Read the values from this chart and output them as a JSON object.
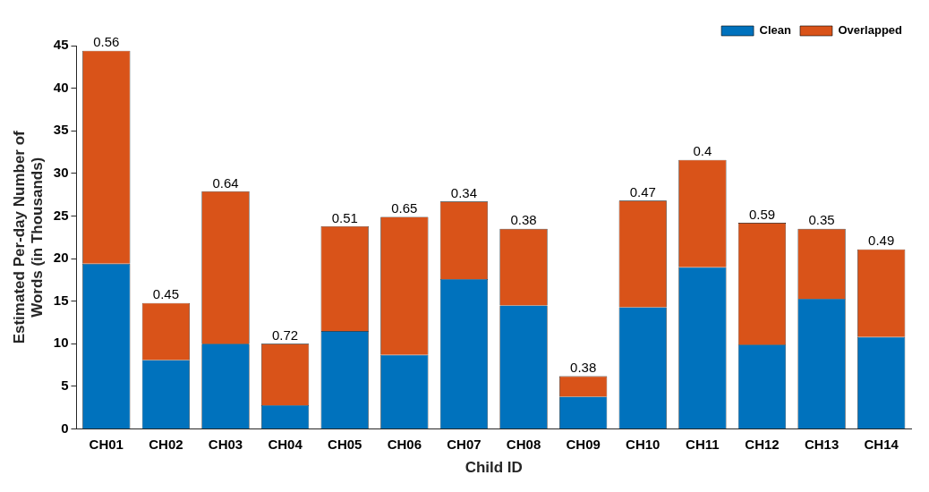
{
  "chart_data": {
    "type": "bar",
    "stacked": true,
    "xlabel": "Child ID",
    "ylabel": "Estimated Per-day Number of Words (in Thousands)",
    "categories": [
      "CH01",
      "CH02",
      "CH03",
      "CH04",
      "CH05",
      "CH06",
      "CH07",
      "CH08",
      "CH09",
      "CH10",
      "CH11",
      "CH12",
      "CH13",
      "CH14"
    ],
    "series": [
      {
        "name": "Clean",
        "color": "#0072bd",
        "values": [
          19.4,
          8.1,
          10.0,
          2.8,
          11.5,
          8.7,
          17.6,
          14.5,
          3.8,
          14.3,
          19.0,
          9.9,
          15.3,
          10.8
        ]
      },
      {
        "name": "Overlapped",
        "color": "#d95319",
        "values": [
          25.0,
          6.7,
          17.9,
          7.2,
          12.3,
          16.2,
          9.1,
          9.0,
          2.4,
          12.5,
          12.6,
          14.3,
          8.2,
          10.3
        ]
      }
    ],
    "ylim": [
      0,
      45
    ],
    "yticks": [
      0,
      5,
      10,
      15,
      20,
      25,
      30,
      35,
      40,
      45
    ],
    "grid": false,
    "legend": "top right",
    "annotations": [
      {
        "text": "0.56",
        "x": "CH01",
        "y": 44.4
      },
      {
        "text": "0.45",
        "x": "CH02",
        "y": 14.8
      },
      {
        "text": "0.64",
        "x": "CH03",
        "y": 27.9
      },
      {
        "text": "0.72",
        "x": "CH04",
        "y": 10.0
      },
      {
        "text": "0.51",
        "x": "CH05",
        "y": 23.8
      },
      {
        "text": "0.65",
        "x": "CH06",
        "y": 24.9
      },
      {
        "text": "0.34",
        "x": "CH07",
        "y": 26.7
      },
      {
        "text": "0.38",
        "x": "CH08",
        "y": 23.5
      },
      {
        "text": "0.38",
        "x": "CH09",
        "y": 6.2
      },
      {
        "text": "0.47",
        "x": "CH10",
        "y": 26.8
      },
      {
        "text": "0.4",
        "x": "CH11",
        "y": 31.6
      },
      {
        "text": "0.59",
        "x": "CH12",
        "y": 24.2
      },
      {
        "text": "0.35",
        "x": "CH13",
        "y": 23.5
      },
      {
        "text": "0.49",
        "x": "CH14",
        "y": 21.1
      }
    ]
  }
}
